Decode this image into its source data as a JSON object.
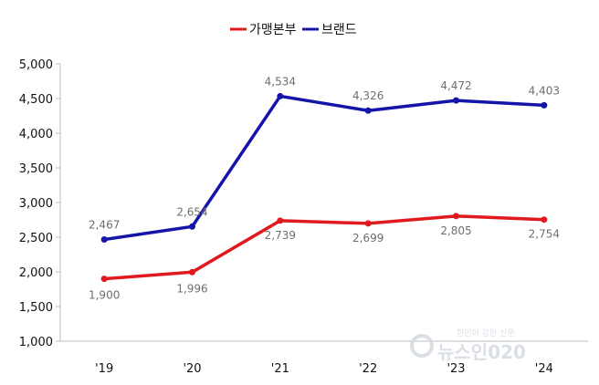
{
  "chart_data": {
    "type": "line",
    "title": "",
    "xlabel": "",
    "ylabel": "",
    "categories": [
      "'19",
      "'20",
      "'21",
      "'22",
      "'23",
      "'24"
    ],
    "ylim": [
      1000,
      5000
    ],
    "yticks": [
      1000,
      1500,
      2000,
      2500,
      3000,
      3500,
      4000,
      4500,
      5000
    ],
    "ytick_labels": [
      "1,000",
      "1,500",
      "2,000",
      "2,500",
      "3,000",
      "3,500",
      "4,000",
      "4,500",
      "5,000"
    ],
    "grid": false,
    "legend_position": "top-center",
    "series": [
      {
        "name": "가맹본부",
        "color": "#e0191e",
        "values": [
          1900,
          1996,
          2739,
          2699,
          2805,
          2754
        ],
        "labels": [
          "1,900",
          "1,996",
          "2,739",
          "2,699",
          "2,805",
          "2,754"
        ]
      },
      {
        "name": "브랜드",
        "color": "#1414a8",
        "values": [
          2467,
          2654,
          4534,
          4326,
          4472,
          4403
        ],
        "labels": [
          "2,467",
          "2,654",
          "4,534",
          "4,326",
          "4,472",
          "4,403"
        ]
      }
    ]
  },
  "watermark": {
    "main": "뉴스인020",
    "sub": "한민이 강한 신문",
    "icon": "newsin-logo-icon"
  }
}
